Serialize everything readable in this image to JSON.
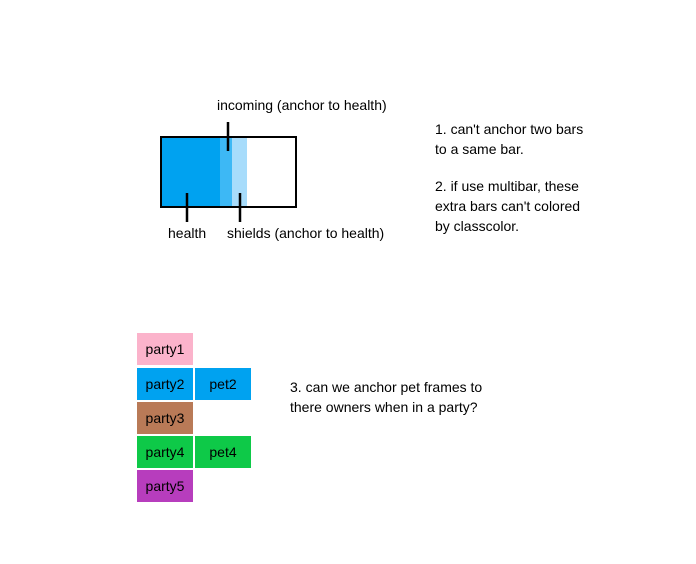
{
  "bar_diagram": {
    "labels": {
      "incoming": "incoming (anchor to health)",
      "health": "health",
      "shields": "shields (anchor to health)"
    },
    "colors": {
      "health": "#00a2f0",
      "incoming": "#3db8f5",
      "shields": "#a7dcfb",
      "outline": "#000000"
    }
  },
  "notes": {
    "note1": "1. can't anchor two bars\nto a same bar.",
    "note2": "2. if use multibar, these\nextra bars can't colored\nby classcolor.",
    "note3": "3. can we anchor pet frames to\nthere owners when in a party?"
  },
  "frames": {
    "party1": {
      "label": "party1",
      "color": "#fbb3cb"
    },
    "party2": {
      "label": "party2",
      "color": "#00a2f0"
    },
    "pet2": {
      "label": "pet2",
      "color": "#00a2f0"
    },
    "party3": {
      "label": "party3",
      "color": "#b97a57"
    },
    "party4": {
      "label": "party4",
      "color": "#0ec948"
    },
    "pet4": {
      "label": "pet4",
      "color": "#0ec948"
    },
    "party5": {
      "label": "party5",
      "color": "#b73dbd"
    }
  }
}
